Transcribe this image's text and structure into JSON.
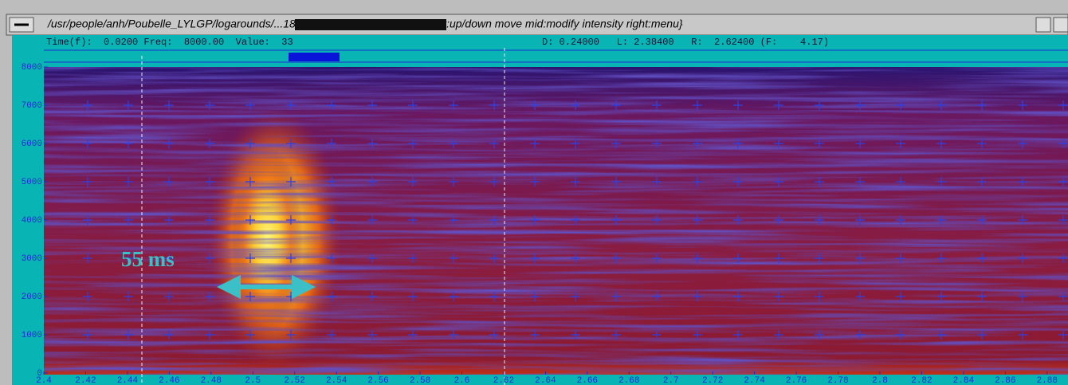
{
  "title_bar": {
    "title": "/usr/people/anh/Poubelle_LYLGP/logarounds/...1815.ed.sgram (S.F.= 500.0) {left:up/down move  mid:modify intensity  right:menu}"
  },
  "info_bar": {
    "left": "Time(f):  0.0200 Freq:  8000.00  Value:  33",
    "right": "D: 0.24000   L: 2.38400   R:  2.62400 (F:    4.17)"
  },
  "spectrogram": {
    "ylim": [
      0,
      8000
    ],
    "yticks": [
      0,
      1000,
      2000,
      3000,
      4000,
      5000,
      6000,
      7000,
      8000
    ],
    "xlim": [
      2.4,
      2.89
    ],
    "xticks": [
      2.4,
      2.42,
      2.44,
      2.46,
      2.48,
      2.5,
      2.52,
      2.54,
      2.56,
      2.58,
      2.6,
      2.62,
      2.64,
      2.66,
      2.68,
      2.7,
      2.72,
      2.74,
      2.76,
      2.78,
      2.8,
      2.82,
      2.84,
      2.86,
      2.88
    ],
    "annotation": "55 ms"
  }
}
